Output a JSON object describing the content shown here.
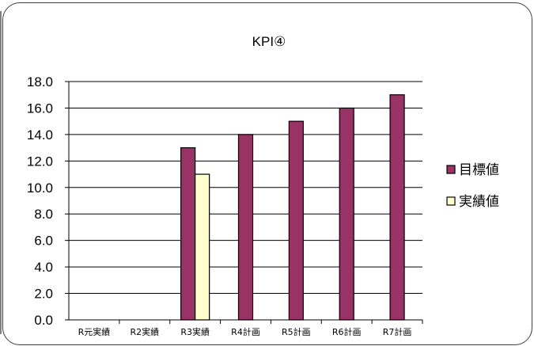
{
  "chart_data": {
    "type": "bar",
    "title": "KPI④",
    "categories": [
      "R元実績",
      "R2実績",
      "R3実績",
      "R4計画",
      "R5計画",
      "R6計画",
      "R7計画"
    ],
    "series": [
      {
        "name": "目標値",
        "color": "#993366",
        "values": [
          null,
          null,
          13.0,
          14.0,
          15.0,
          16.0,
          17.0
        ]
      },
      {
        "name": "実績値",
        "color": "#FFFFCC",
        "values": [
          null,
          null,
          11.0,
          null,
          null,
          null,
          null
        ]
      }
    ],
    "ylim": [
      0,
      18
    ],
    "ytick_step": 2,
    "ytick_labels": [
      "0.0",
      "2.0",
      "4.0",
      "6.0",
      "8.0",
      "10.0",
      "12.0",
      "14.0",
      "16.0",
      "18.0"
    ],
    "grid": true,
    "legend_position": "right"
  }
}
